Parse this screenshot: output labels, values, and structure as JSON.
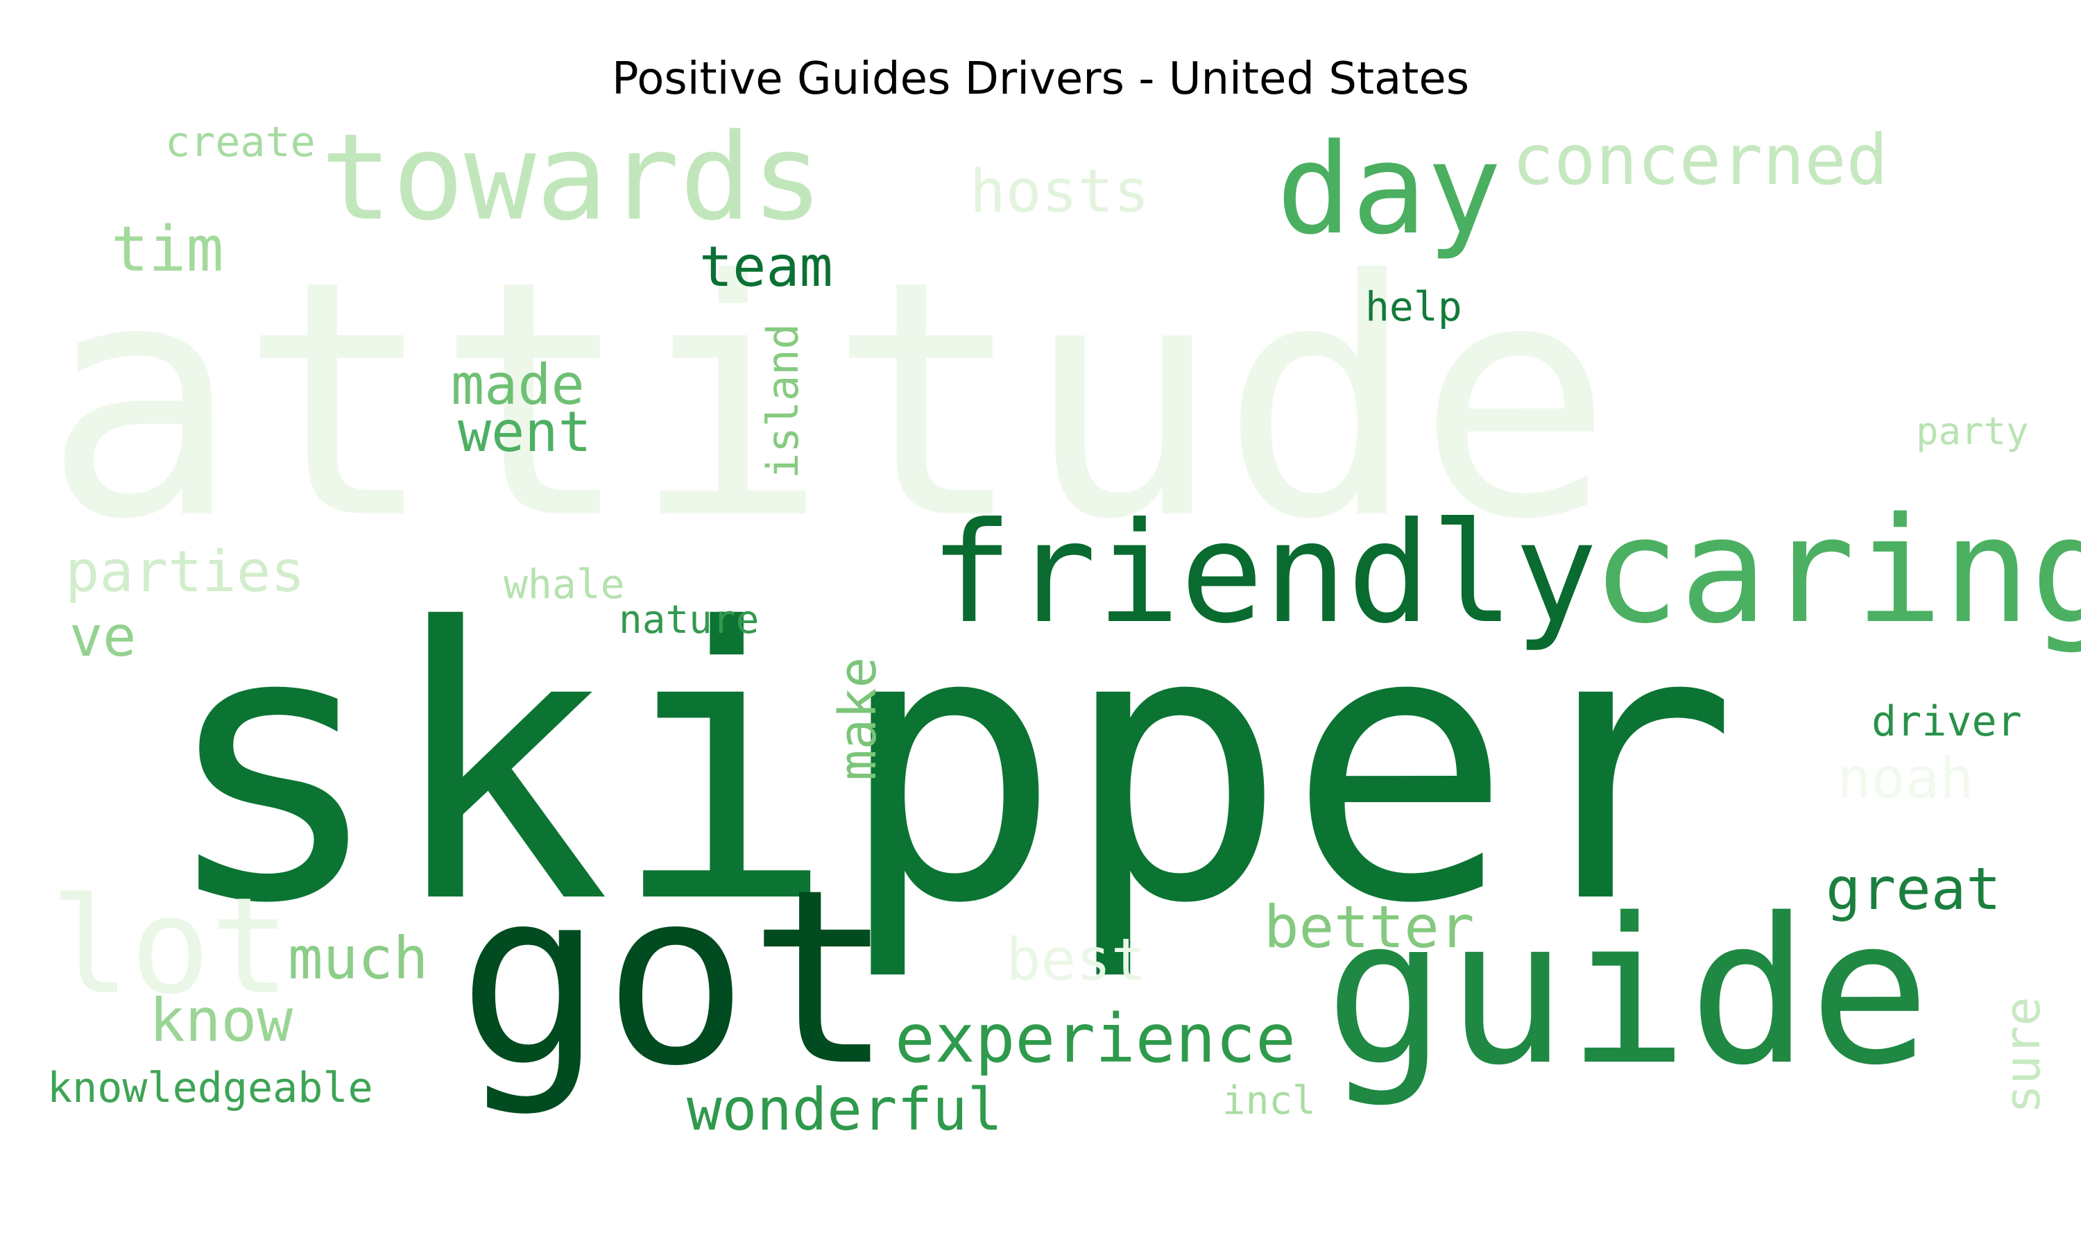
{
  "title": "Positive Guides Drivers - United States",
  "words": [
    {
      "text": "attitude",
      "color": "#edf8ea"
    },
    {
      "text": "skipper",
      "color": "#0b7433"
    },
    {
      "text": "got",
      "color": "#004b1f"
    },
    {
      "text": "guide",
      "color": "#1f8842"
    },
    {
      "text": "friendly",
      "color": "#096b2f"
    },
    {
      "text": "caring",
      "color": "#4bb062"
    },
    {
      "text": "towards",
      "color": "#c2e6bb"
    },
    {
      "text": "day",
      "color": "#4aaf60"
    },
    {
      "text": "concerned",
      "color": "#c6e8c0"
    },
    {
      "text": "hosts",
      "color": "#e3f4de"
    },
    {
      "text": "create",
      "color": "#a6dba0"
    },
    {
      "text": "tim",
      "color": "#a3da9c"
    },
    {
      "text": "team",
      "color": "#0b7033"
    },
    {
      "text": "help",
      "color": "#137a3a"
    },
    {
      "text": "made",
      "color": "#6ec074"
    },
    {
      "text": "went",
      "color": "#4eaf63"
    },
    {
      "text": "island",
      "color": "#86cb80"
    },
    {
      "text": "party",
      "color": "#b8e3b2"
    },
    {
      "text": "parties",
      "color": "#d2edcc"
    },
    {
      "text": "whale",
      "color": "#b5e1ae"
    },
    {
      "text": "nature",
      "color": "#34994f"
    },
    {
      "text": "ve",
      "color": "#94d290"
    },
    {
      "text": "make",
      "color": "#7cc47a"
    },
    {
      "text": "driver",
      "color": "#299149"
    },
    {
      "text": "noah",
      "color": "#f2faf0"
    },
    {
      "text": "great",
      "color": "#1b7f3e"
    },
    {
      "text": "lot",
      "color": "#eaf7e6"
    },
    {
      "text": "much",
      "color": "#8ccd87"
    },
    {
      "text": "best",
      "color": "#eaf7e6"
    },
    {
      "text": "better",
      "color": "#84c97f"
    },
    {
      "text": "know",
      "color": "#9bd596"
    },
    {
      "text": "experience",
      "color": "#2f9a4c"
    },
    {
      "text": "sure",
      "color": "#c8e9c2"
    },
    {
      "text": "knowledgeable",
      "color": "#3ea456"
    },
    {
      "text": "wonderful",
      "color": "#2f994c"
    },
    {
      "text": "incl",
      "color": "#a9dca2"
    }
  ]
}
